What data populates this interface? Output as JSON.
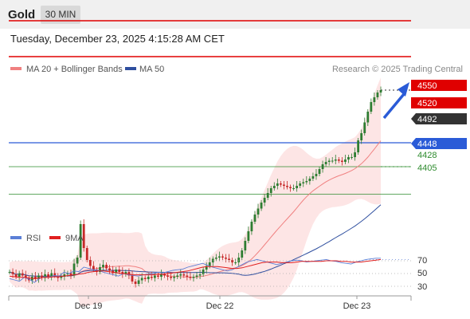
{
  "header": {
    "instrument": "Gold",
    "timeframe": "30 MIN"
  },
  "timestamp": "Tuesday, December 23, 2025 4:15:28 AM CET",
  "credit": "Research © 2025 Trading Central",
  "legend": {
    "ma20": {
      "label": "MA 20 + Bollinger Bands",
      "color": "#f08080"
    },
    "ma50": {
      "label": "MA 50",
      "color": "#2f4f9f"
    },
    "rsi": {
      "label": "RSI",
      "color": "#5b7fd6"
    },
    "ma9": {
      "label": "9MA",
      "color": "#e02020"
    }
  },
  "levels": {
    "resistance2": {
      "label": "4550",
      "color": "#e00000"
    },
    "resistance1": {
      "label": "4520",
      "color": "#e00000"
    },
    "last": {
      "label": "4492",
      "color": "#333333"
    },
    "pivot": {
      "label": "4448",
      "color": "#2a5bd7"
    },
    "support1": {
      "label": "4428",
      "color": "#2e8b2e"
    },
    "support2": {
      "label": "4405",
      "color": "#2e8b2e"
    }
  },
  "x_axis": [
    "Dec 19",
    "Dec 22",
    "Dec 23"
  ],
  "rsi_axis": [
    "70",
    "50",
    "30"
  ],
  "chart_data": {
    "type": "candlestick",
    "instrument": "Gold",
    "timeframe": "30 MIN",
    "x_tick_labels": [
      "Dec 19",
      "Dec 22",
      "Dec 23"
    ],
    "price_levels": [
      4550,
      4520,
      4492,
      4448,
      4428,
      4405
    ],
    "close": [
      4340,
      4338,
      4336,
      4339,
      4337,
      4335,
      4333,
      4336,
      4334,
      4337,
      4335,
      4338,
      4336,
      4339,
      4337,
      4335,
      4336,
      4338,
      4339,
      4337,
      4347,
      4352,
      4380,
      4360,
      4350,
      4345,
      4342,
      4340,
      4344,
      4346,
      4343,
      4341,
      4339,
      4342,
      4340,
      4338,
      4340,
      4337,
      4332,
      4330,
      4333,
      4335,
      4334,
      4336,
      4335,
      4337,
      4336,
      4338,
      4337,
      4336,
      4335,
      4336,
      4337,
      4338,
      4337,
      4336,
      4335,
      4336,
      4337,
      4338,
      4342,
      4345,
      4348,
      4351,
      4352,
      4353,
      4352,
      4351,
      4350,
      4348,
      4348,
      4352,
      4358,
      4366,
      4374,
      4382,
      4388,
      4393,
      4398,
      4402,
      4406,
      4410,
      4412,
      4414,
      4413,
      4412,
      4411,
      4410,
      4410,
      4412,
      4414,
      4415,
      4416,
      4418,
      4420,
      4422,
      4426,
      4430,
      4432,
      4433,
      4433,
      4434,
      4433,
      4432,
      4434,
      4436,
      4436,
      4440,
      4450,
      4456,
      4465,
      4474,
      4482,
      4486,
      4490,
      4492
    ],
    "rsi": [
      42,
      40,
      38,
      44,
      41,
      36,
      42,
      45,
      44,
      47,
      46,
      52,
      50,
      54,
      53,
      60,
      58,
      56,
      55,
      52,
      50,
      48,
      46,
      50,
      48,
      47,
      46,
      48,
      49,
      50,
      52,
      51,
      53,
      55,
      56,
      57,
      60,
      62,
      64,
      66,
      63,
      60,
      58,
      56,
      54,
      56,
      60,
      64,
      68,
      70,
      72,
      70,
      68,
      66,
      64,
      66,
      68,
      70,
      71,
      70,
      68,
      69,
      70,
      71,
      72,
      70,
      69,
      67,
      66,
      65,
      68,
      70,
      72,
      73,
      74,
      74
    ],
    "rsi_ma9": [
      46,
      45,
      44,
      44,
      43,
      42,
      43,
      44,
      44,
      45,
      45,
      46,
      47,
      48,
      49,
      50,
      52,
      53,
      54,
      54,
      53,
      52,
      51,
      50,
      49,
      48,
      48,
      48,
      48,
      48,
      49,
      49,
      50,
      51,
      52,
      53,
      54,
      56,
      58,
      60,
      61,
      61,
      61,
      60,
      59,
      58,
      58,
      59,
      61,
      63,
      65,
      67,
      68,
      68,
      68,
      67,
      67,
      67,
      68,
      69,
      69,
      69,
      69,
      69,
      70,
      70,
      70,
      69,
      69,
      68,
      68,
      68,
      69,
      70,
      71,
      72
    ],
    "rsi_levels": [
      70,
      50,
      30
    ]
  }
}
